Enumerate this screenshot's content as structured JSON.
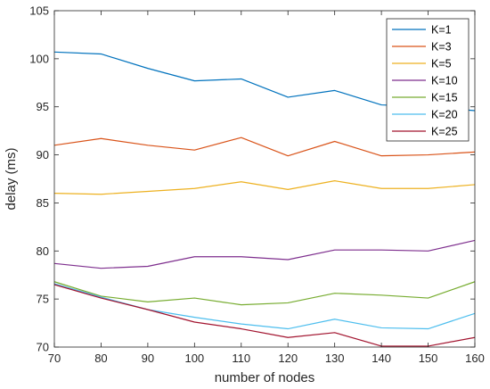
{
  "chart_data": {
    "type": "line",
    "title": "",
    "xlabel": "number of nodes",
    "ylabel": "delay (ms)",
    "x": [
      70,
      80,
      90,
      100,
      110,
      120,
      130,
      140,
      150,
      160
    ],
    "xlim": [
      70,
      160
    ],
    "ylim": [
      70,
      105
    ],
    "xticks": [
      70,
      80,
      90,
      100,
      110,
      120,
      130,
      140,
      150,
      160
    ],
    "yticks": [
      70,
      75,
      80,
      85,
      90,
      95,
      100,
      105
    ],
    "grid": false,
    "legend_position": "top-right",
    "series": [
      {
        "name": "K=1",
        "color": "#0072BD",
        "values": [
          100.7,
          100.5,
          99.0,
          97.7,
          97.9,
          96.0,
          96.7,
          95.2,
          95.0,
          94.6
        ]
      },
      {
        "name": "K=3",
        "color": "#D95319",
        "values": [
          91.0,
          91.7,
          91.0,
          90.5,
          91.8,
          89.9,
          91.4,
          89.9,
          90.0,
          90.3
        ]
      },
      {
        "name": "K=5",
        "color": "#EDB120",
        "values": [
          86.0,
          85.9,
          86.2,
          86.5,
          87.2,
          86.4,
          87.3,
          86.5,
          86.5,
          86.9
        ]
      },
      {
        "name": "K=10",
        "color": "#7E2F8E",
        "values": [
          78.7,
          78.2,
          78.4,
          79.4,
          79.4,
          79.1,
          80.1,
          80.1,
          80.0,
          81.1
        ]
      },
      {
        "name": "K=15",
        "color": "#77AC30",
        "values": [
          76.8,
          75.3,
          74.7,
          75.1,
          74.4,
          74.6,
          75.6,
          75.4,
          75.1,
          76.8
        ]
      },
      {
        "name": "K=20",
        "color": "#4DBEEE",
        "values": [
          76.6,
          75.2,
          73.9,
          73.1,
          72.4,
          71.9,
          72.9,
          72.0,
          71.9,
          73.5
        ]
      },
      {
        "name": "K=25",
        "color": "#A2142F",
        "values": [
          76.5,
          75.1,
          73.9,
          72.6,
          71.9,
          71.0,
          71.5,
          70.1,
          70.1,
          71.0
        ]
      }
    ]
  }
}
